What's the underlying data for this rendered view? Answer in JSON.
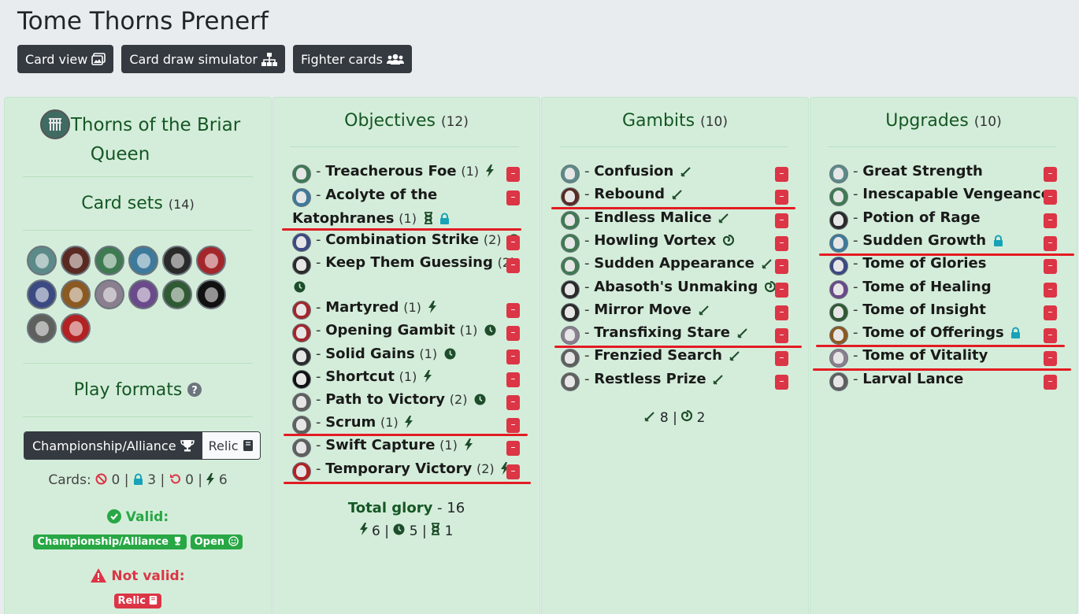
{
  "page": {
    "title": "Tome Thorns Prenerf"
  },
  "toolbar": {
    "card_view": "Card view",
    "card_draw": "Card draw simulator",
    "fighter_cards": "Fighter cards"
  },
  "colors": {
    "objective_bg": "#d4edda",
    "delete": "#dc3545",
    "underline": "#e31b23",
    "dark_green": "#155724"
  },
  "warband": {
    "name_line1": "Thorns of the Briar",
    "name_line2": "Queen",
    "card_sets_label": "Card sets",
    "card_sets_count": "(14)",
    "set_icons": [
      "shadespire",
      "beastgrave",
      "nightvault-green",
      "direchasm",
      "universal-dark",
      "dreadfane",
      "ghur-blue",
      "beastgrave-orange",
      "arena-mortis",
      "harrowdeep",
      "starblood",
      "gnarlwood",
      "wyrdhollow",
      "deathgorge"
    ],
    "play_formats_label": "Play formats",
    "format_championship": "Championship/Alliance",
    "format_relic": "Relic",
    "cards_label": "Cards:",
    "cards_banned": "0",
    "cards_restricted": "3",
    "cards_rotated": "0",
    "cards_surge": "6",
    "valid_label": "Valid:",
    "valid_badges": [
      "Championship/Alliance",
      "Open"
    ],
    "not_valid_label": "Not valid:",
    "not_valid_badge": "Relic"
  },
  "objectives": {
    "title": "Objectives",
    "count": "(12)",
    "rows": [
      {
        "name": "Treacherous Foe",
        "glory": "(1)",
        "tag": "surge",
        "icon": "nightvault-green"
      },
      {
        "name": "Acolyte of the",
        "name2": "Katophranes",
        "glory": "(1)",
        "tag": "endphase-restricted",
        "icon": "direchasm"
      },
      {
        "name": "Combination Strike",
        "glory": "(2)",
        "tag": "endphase",
        "icon": "ghur-blue"
      },
      {
        "name": "Keep Them Guessing",
        "glory": "(2)",
        "tag": "endphase",
        "icon": "universal-dark"
      },
      {
        "name": "Martyred",
        "glory": "(1)",
        "tag": "surge",
        "icon": "dreadfane"
      },
      {
        "name": "Opening Gambit",
        "glory": "(1)",
        "tag": "endphase",
        "icon": "dreadfane"
      },
      {
        "name": "Solid Gains",
        "glory": "(1)",
        "tag": "endphase",
        "icon": "universal-dark"
      },
      {
        "name": "Shortcut",
        "glory": "(1)",
        "tag": "surge",
        "icon": "gnarlwood"
      },
      {
        "name": "Path to Victory",
        "glory": "(2)",
        "tag": "endphase",
        "icon": "wyrdhollow"
      },
      {
        "name": "Scrum",
        "glory": "(1)",
        "tag": "surge",
        "icon": "wyrdhollow"
      },
      {
        "name": "Swift Capture",
        "glory": "(1)",
        "tag": "surge",
        "icon": "wyrdhollow"
      },
      {
        "name": "Temporary Victory",
        "glory": "(2)",
        "tag": "surge",
        "icon": "deathgorge"
      }
    ],
    "total_glory_label": "Total glory",
    "total_glory_value": "16",
    "surge": "6",
    "endphase": "5",
    "third": "1"
  },
  "gambits": {
    "title": "Gambits",
    "count": "(10)",
    "rows": [
      {
        "name": "Confusion",
        "tag": "ploy",
        "icon": "shadespire"
      },
      {
        "name": "Rebound",
        "tag": "ploy",
        "icon": "beastgrave"
      },
      {
        "name": "Endless Malice",
        "tag": "ploy",
        "icon": "nightvault-green"
      },
      {
        "name": "Howling Vortex",
        "tag": "spell",
        "icon": "nightvault-green"
      },
      {
        "name": "Sudden Appearance",
        "tag": "ploy",
        "icon": "nightvault-green"
      },
      {
        "name": "Abasoth's Unmaking",
        "tag": "spell",
        "icon": "universal-dark"
      },
      {
        "name": "Mirror Move",
        "tag": "ploy",
        "icon": "universal-dark"
      },
      {
        "name": "Transfixing Stare",
        "tag": "ploy",
        "icon": "arena-mortis"
      },
      {
        "name": "Frenzied Search",
        "tag": "ploy",
        "icon": "wyrdhollow"
      },
      {
        "name": "Restless Prize",
        "tag": "ploy",
        "icon": "wyrdhollow"
      }
    ],
    "ploys": "8",
    "spells": "2"
  },
  "upgrades": {
    "title": "Upgrades",
    "count": "(10)",
    "rows": [
      {
        "name": "Great Strength",
        "icon": "shadespire"
      },
      {
        "name": "Inescapable Vengeance",
        "icon": "nightvault-green"
      },
      {
        "name": "Potion of Rage",
        "icon": "universal-dark"
      },
      {
        "name": "Sudden Growth",
        "tag": "restricted",
        "icon": "direchasm"
      },
      {
        "name": "Tome of Glories",
        "icon": "ghur-blue"
      },
      {
        "name": "Tome of Healing",
        "icon": "harrowdeep"
      },
      {
        "name": "Tome of Insight",
        "icon": "starblood"
      },
      {
        "name": "Tome of Offerings",
        "tag": "restricted",
        "icon": "beastgrave-orange"
      },
      {
        "name": "Tome of Vitality",
        "icon": "arena-mortis"
      },
      {
        "name": "Larval Lance",
        "icon": "wyrdhollow"
      }
    ]
  }
}
